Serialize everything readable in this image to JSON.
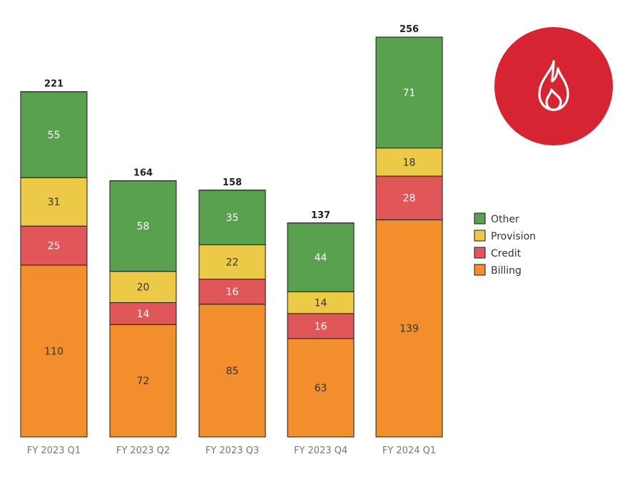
{
  "chart_data": {
    "type": "bar",
    "stacked": true,
    "categories": [
      "FY 2023 Q1",
      "FY 2023 Q2",
      "FY 2023 Q3",
      "FY 2023 Q4",
      "FY 2024 Q1"
    ],
    "series": [
      {
        "name": "Billing",
        "color": "#f28e2b",
        "label_color": "#333333",
        "values": [
          110,
          72,
          85,
          63,
          139
        ]
      },
      {
        "name": "Credit",
        "color": "#e15759",
        "label_color": "#ffffff",
        "values": [
          25,
          14,
          16,
          16,
          28
        ]
      },
      {
        "name": "Provision",
        "color": "#edc948",
        "label_color": "#333333",
        "values": [
          31,
          20,
          22,
          14,
          18
        ]
      },
      {
        "name": "Other",
        "color": "#59a14f",
        "label_color": "#ffffff",
        "values": [
          55,
          58,
          35,
          44,
          71
        ]
      }
    ],
    "totals": [
      221,
      164,
      158,
      137,
      256
    ],
    "legend_order": [
      "Other",
      "Provision",
      "Credit",
      "Billing"
    ],
    "legend_position": "right",
    "grid": false,
    "ylim": [
      0,
      256
    ]
  },
  "badge": {
    "icon": "flame-icon",
    "background": "#d62432",
    "icon_color": "#ffffff"
  }
}
